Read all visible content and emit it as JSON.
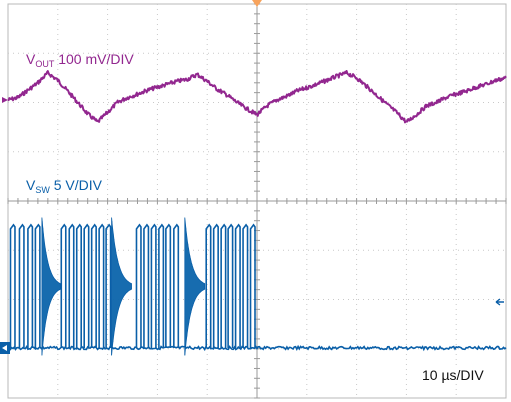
{
  "chart_data": {
    "type": "line",
    "title": "",
    "grid": true,
    "divisions": {
      "x": 10,
      "y": 8
    },
    "timebase": {
      "label": "10 µs/DIV",
      "per_div_us": 10
    },
    "x_range_us": [
      0,
      100
    ],
    "series": [
      {
        "name": "VOUT",
        "prefix": "V",
        "subscript": "OUT",
        "scale_text": "100 mV/DIV",
        "per_div_mv": 100,
        "color": "#92278f",
        "unit": "mV",
        "points": [
          [
            0,
            0
          ],
          [
            2,
            5
          ],
          [
            4,
            20
          ],
          [
            6,
            35
          ],
          [
            8,
            55
          ],
          [
            10,
            40
          ],
          [
            12,
            18
          ],
          [
            14,
            -5
          ],
          [
            16,
            -28
          ],
          [
            18,
            -45
          ],
          [
            20,
            -25
          ],
          [
            22,
            -5
          ],
          [
            24,
            5
          ],
          [
            26,
            12
          ],
          [
            28,
            20
          ],
          [
            30,
            26
          ],
          [
            32,
            32
          ],
          [
            34,
            38
          ],
          [
            36,
            42
          ],
          [
            38,
            52
          ],
          [
            40,
            38
          ],
          [
            42,
            22
          ],
          [
            44,
            10
          ],
          [
            46,
            -5
          ],
          [
            48,
            -18
          ],
          [
            50,
            -30
          ],
          [
            52,
            -12
          ],
          [
            54,
            0
          ],
          [
            56,
            8
          ],
          [
            58,
            18
          ],
          [
            60,
            25
          ],
          [
            62,
            32
          ],
          [
            64,
            40
          ],
          [
            66,
            48
          ],
          [
            68,
            55
          ],
          [
            70,
            45
          ],
          [
            72,
            28
          ],
          [
            74,
            10
          ],
          [
            76,
            -8
          ],
          [
            78,
            -25
          ],
          [
            80,
            -45
          ],
          [
            82,
            -30
          ],
          [
            84,
            -12
          ],
          [
            86,
            -5
          ],
          [
            88,
            5
          ],
          [
            90,
            12
          ],
          [
            92,
            18
          ],
          [
            94,
            26
          ],
          [
            96,
            32
          ],
          [
            98,
            40
          ],
          [
            100,
            45
          ]
        ]
      },
      {
        "name": "VSW",
        "prefix": "V",
        "subscript": "SW",
        "scale_text": "5 V/DIV",
        "per_div_v": 5,
        "color": "#0a5fa8",
        "ringing_color": "#35c7d3",
        "unit": "V",
        "high_v": 12.5,
        "low_v": 0,
        "bursts": [
          {
            "pulses_start_us": [
              0.5,
              2.3,
              4.0,
              5.5
            ],
            "ringing_start_us": 6.8,
            "ringing_end_us": 10.5
          },
          {
            "pulses_start_us": [
              10.7,
              12.3,
              13.8,
              15.3,
              16.8,
              18.3,
              19.7
            ],
            "ringing_start_us": 20.8,
            "ringing_end_us": 24.8
          },
          {
            "pulses_start_us": [
              25.8,
              27.3,
              28.8,
              30.3,
              31.7,
              33.3
            ],
            "ringing_start_us": 35.5,
            "ringing_end_us": 39.5
          },
          {
            "pulses_start_us": [
              39.8,
              41.3,
              42.8,
              44.2,
              45.7,
              47.2,
              48.7
            ],
            "ringing_start_us": 50.0,
            "ringing_end_us": 50.5
          }
        ]
      }
    ]
  }
}
